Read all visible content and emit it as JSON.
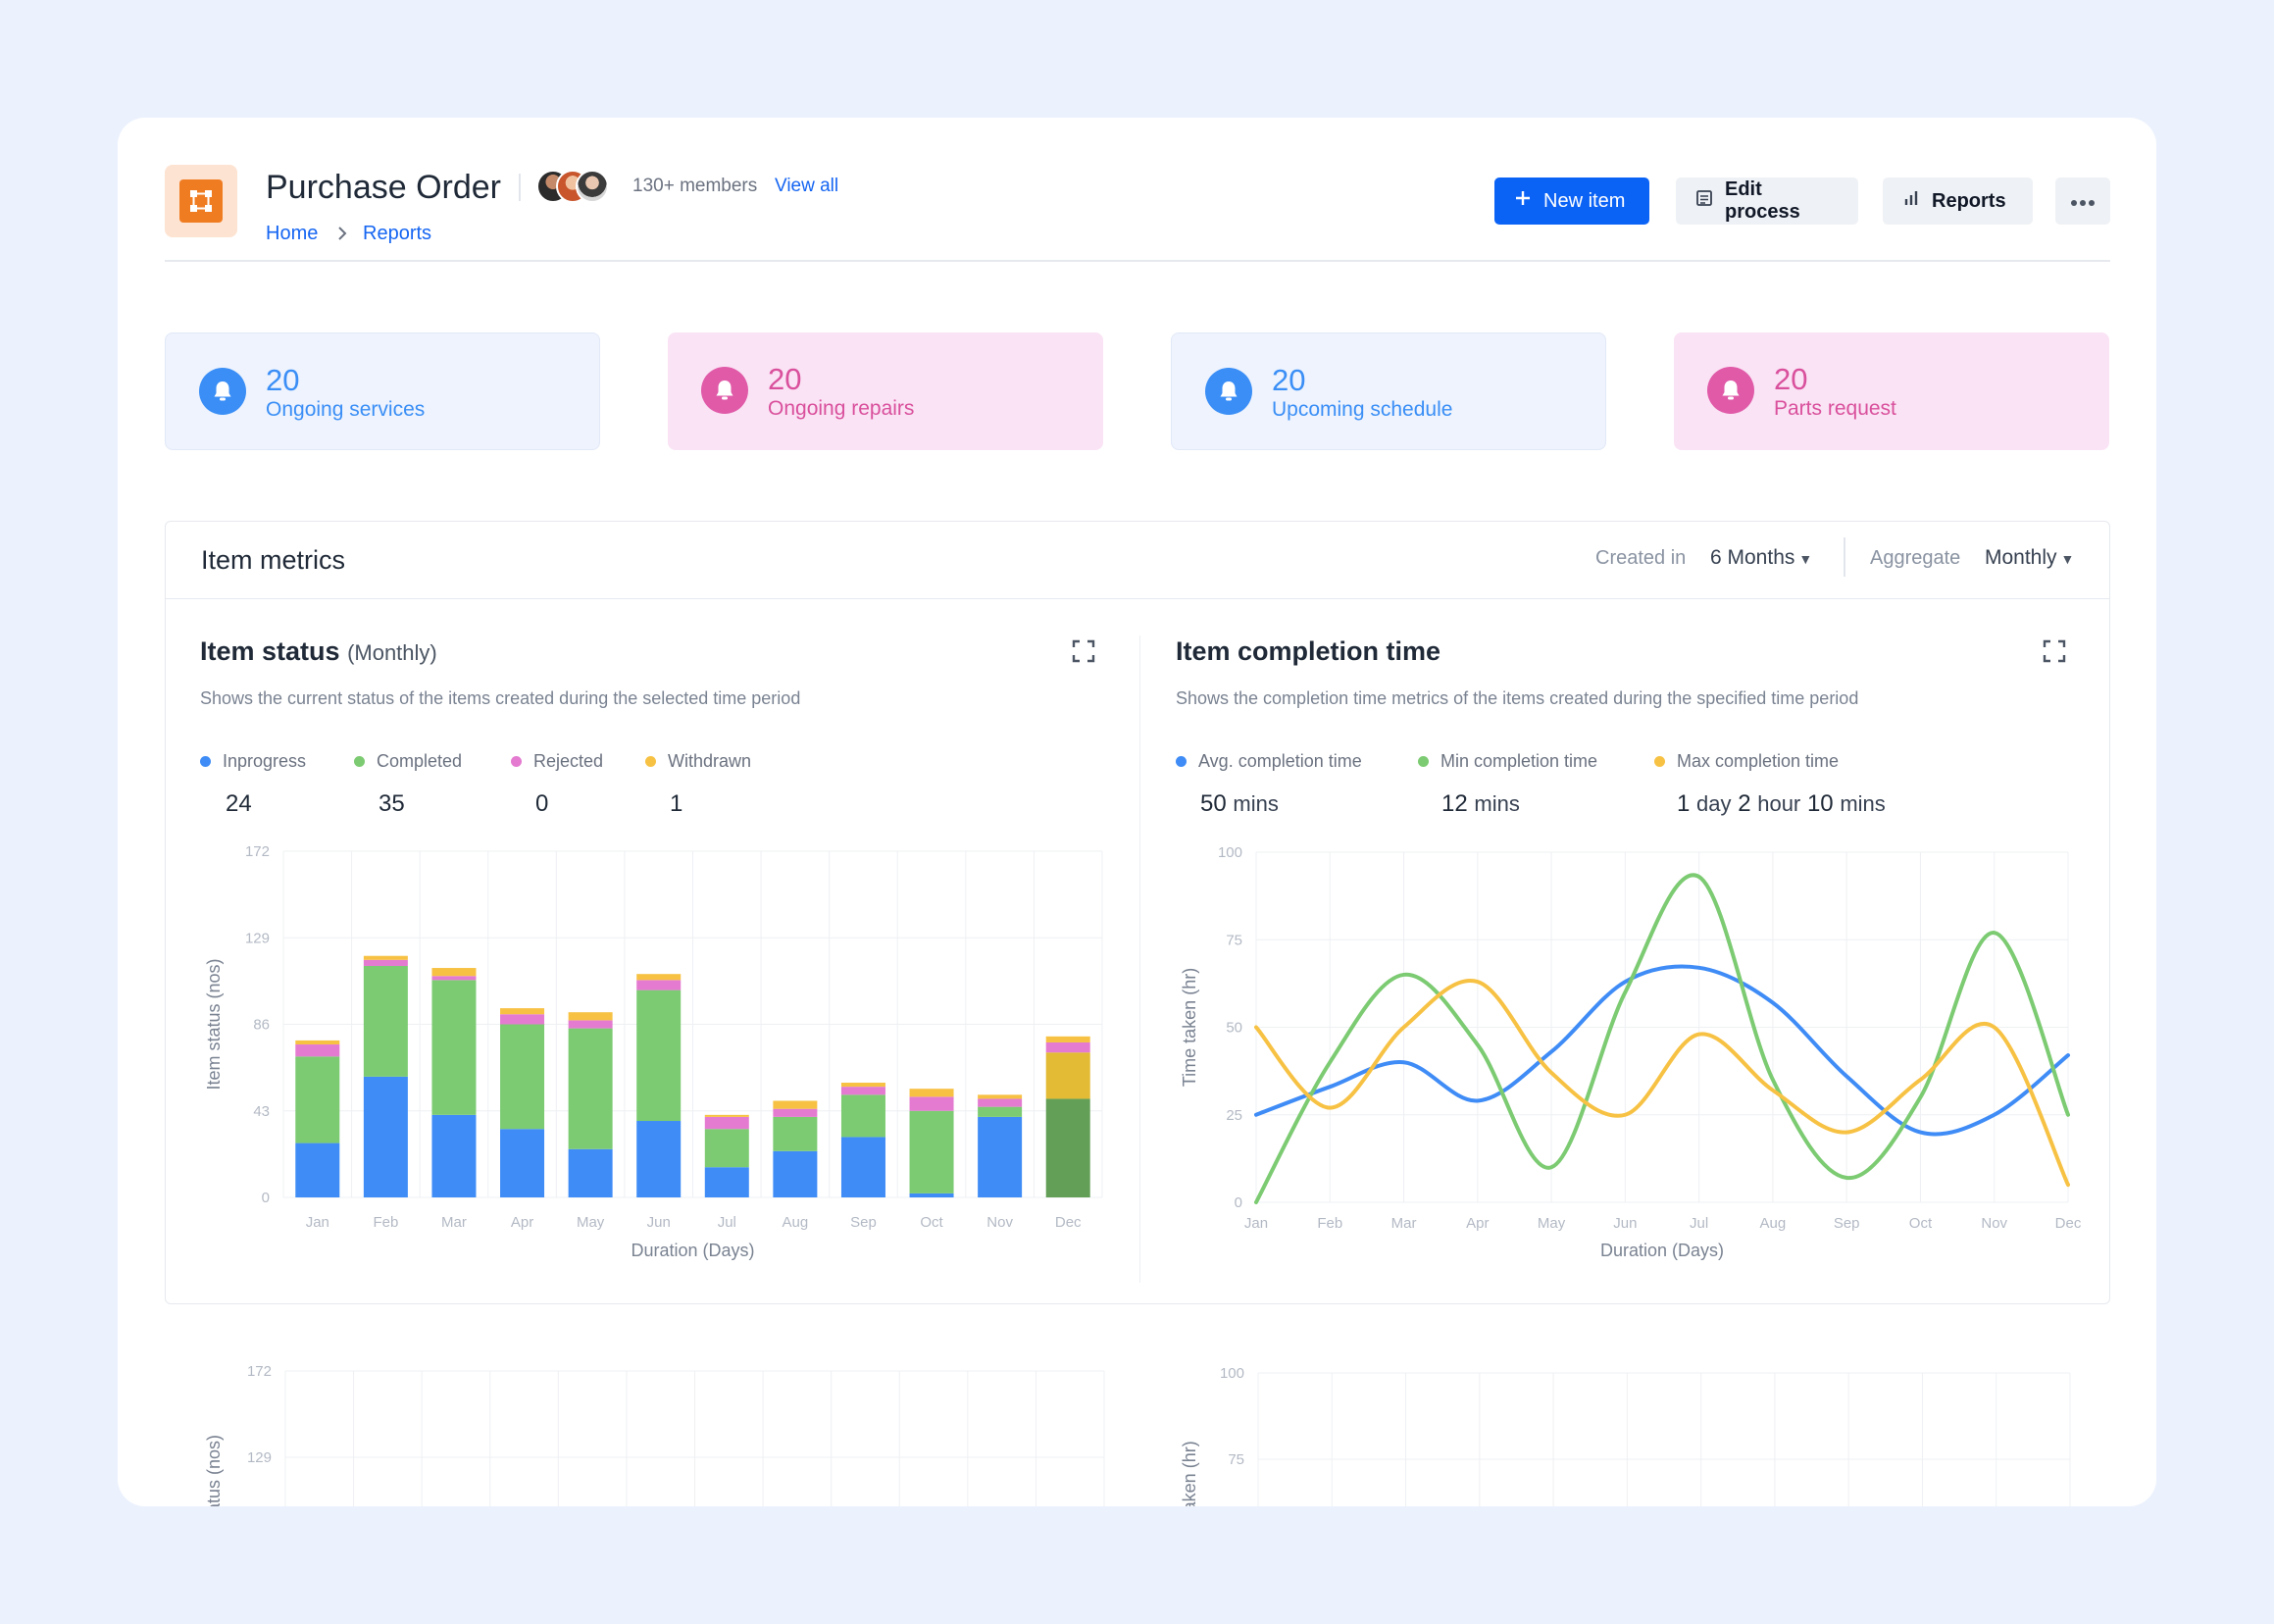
{
  "header": {
    "title": "Purchase Order",
    "members": "130+ members",
    "view_all": "View all",
    "breadcrumb": {
      "home": "Home",
      "current": "Reports"
    },
    "buttons": {
      "new_item": "New item",
      "edit_process": "Edit process",
      "reports": "Reports",
      "more": "more-options"
    }
  },
  "stats": [
    {
      "value": "20",
      "label": "Ongoing services",
      "color": "#3a8ef6"
    },
    {
      "value": "20",
      "label": "Ongoing repairs",
      "color": "#d9509c"
    },
    {
      "value": "20",
      "label": "Upcoming schedule",
      "color": "#3a8ef6"
    },
    {
      "value": "20",
      "label": "Parts request",
      "color": "#d9509c"
    }
  ],
  "metrics": {
    "title": "Item metrics",
    "created_in_label": "Created in",
    "created_in_value": "6 Months",
    "aggregate_label": "Aggregate",
    "aggregate_value": "Monthly"
  },
  "status_chart": {
    "title": "Item status",
    "subtitle": "(Monthly)",
    "description": "Shows the current status of the items created during the selected time period",
    "legend": [
      {
        "name": "Inprogress",
        "value": "24",
        "color": "#3f8cf6"
      },
      {
        "name": "Completed",
        "value": "35",
        "color": "#7ccb72"
      },
      {
        "name": "Rejected",
        "value": "0",
        "color": "#e47bd0"
      },
      {
        "name": "Withdrawn",
        "value": "1",
        "color": "#f7c244"
      }
    ]
  },
  "completion_chart": {
    "title": "Item completion time",
    "description": "Shows the completion time metrics of the items created during the specified time period",
    "legend": [
      {
        "name": "Avg. completion time",
        "color": "#3f8cf6",
        "v1": "50",
        "u1": "mins"
      },
      {
        "name": "Min completion time",
        "color": "#7ccb72",
        "v1": "12",
        "u1": "mins"
      },
      {
        "name": "Max completion time",
        "color": "#f7c244",
        "v1": "1",
        "u1": "day",
        "v2": "2",
        "u2": "hour",
        "v3": "10",
        "u3": "mins"
      }
    ]
  },
  "chart_data": [
    {
      "type": "bar",
      "stacked": true,
      "categories": [
        "Jan",
        "Feb",
        "Mar",
        "Apr",
        "May",
        "Jun",
        "Jul",
        "Aug",
        "Sep",
        "Oct",
        "Nov",
        "Dec"
      ],
      "series": [
        {
          "name": "Inprogress",
          "color": "#3f8cf6",
          "values": [
            27,
            60,
            41,
            34,
            24,
            38,
            15,
            23,
            30,
            2,
            40,
            0
          ]
        },
        {
          "name": "Completed",
          "color": "#7ccb72",
          "values": [
            43,
            55,
            67,
            52,
            60,
            65,
            19,
            17,
            21,
            41,
            5,
            0
          ]
        },
        {
          "name": "Rejected",
          "color": "#e47bd0",
          "values": [
            6,
            3,
            2,
            5,
            4,
            5,
            6,
            4,
            4,
            7,
            4,
            0
          ]
        },
        {
          "name": "Withdrawn",
          "color": "#f7c244",
          "values": [
            2,
            2,
            4,
            3,
            4,
            3,
            1,
            4,
            2,
            4,
            2,
            0
          ]
        },
        {
          "name": "Completed (Dec)",
          "color": "#649f57",
          "values": [
            0,
            0,
            0,
            0,
            0,
            0,
            0,
            0,
            0,
            0,
            0,
            49
          ]
        },
        {
          "name": "Withdrawn (Dec)",
          "color": "#e3bb34",
          "values": [
            0,
            0,
            0,
            0,
            0,
            0,
            0,
            0,
            0,
            0,
            0,
            23
          ]
        },
        {
          "name": "Rejected (Dec)",
          "color": "#e47bd0",
          "values": [
            0,
            0,
            0,
            0,
            0,
            0,
            0,
            0,
            0,
            0,
            0,
            5
          ]
        },
        {
          "name": "Top (Dec)",
          "color": "#f7c244",
          "values": [
            0,
            0,
            0,
            0,
            0,
            0,
            0,
            0,
            0,
            0,
            0,
            3
          ]
        }
      ],
      "ylim": [
        0,
        172
      ],
      "yticks": [
        0,
        43,
        86,
        129,
        172
      ],
      "ylabel": "Item status (nos)",
      "xlabel": "Duration (Days)",
      "grid": true
    },
    {
      "type": "line",
      "categories": [
        "Jan",
        "Feb",
        "Mar",
        "Apr",
        "May",
        "Jun",
        "Jul",
        "Aug",
        "Sep",
        "Oct",
        "Nov",
        "Dec"
      ],
      "series": [
        {
          "name": "Avg. completion time",
          "color": "#3f8cf6",
          "values": [
            25,
            33,
            40,
            29,
            43,
            63,
            67,
            57,
            36,
            20,
            25,
            42
          ]
        },
        {
          "name": "Min completion time",
          "color": "#7ccb72",
          "values": [
            0,
            40,
            65,
            45,
            10,
            60,
            93,
            35,
            7,
            30,
            77,
            25
          ]
        },
        {
          "name": "Max completion time",
          "color": "#f7c244",
          "values": [
            50,
            27,
            50,
            63,
            37,
            25,
            48,
            32,
            20,
            35,
            50,
            5
          ]
        }
      ],
      "ylim": [
        0,
        100
      ],
      "yticks": [
        0,
        25,
        50,
        75,
        100
      ],
      "ylabel": "Time taken (hr)",
      "xlabel": "Duration (Days)",
      "grid": true
    }
  ],
  "ghost_charts": {
    "left_ticks": [
      "172",
      "129"
    ],
    "left_ylabel": "Item status (nos)",
    "right_ticks": [
      "100",
      "75"
    ],
    "right_ylabel": "Time taken (hr)"
  }
}
